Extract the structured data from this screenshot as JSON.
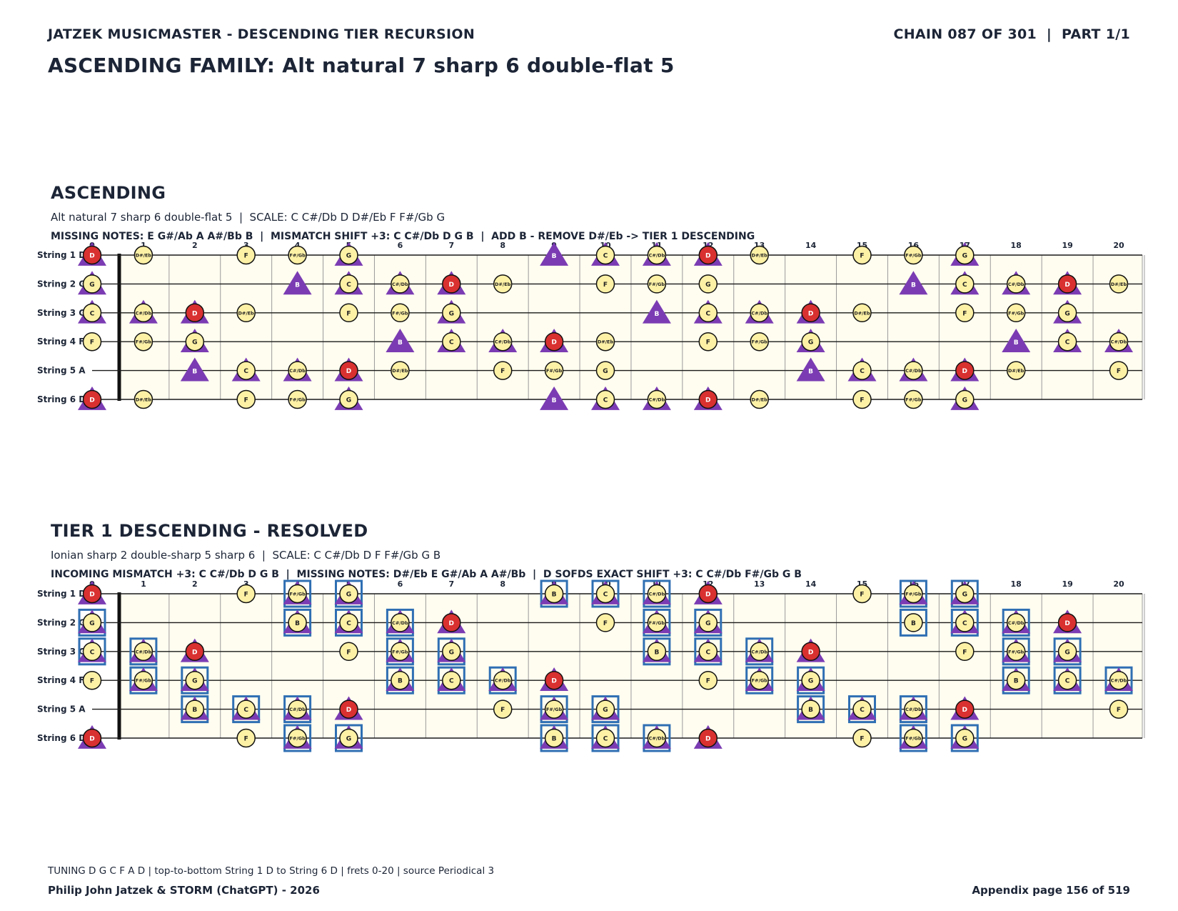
{
  "header": {
    "left": "JATZEK MUSICMASTER - DESCENDING TIER RECURSION",
    "right": "CHAIN 087 OF 301  |  PART 1/1"
  },
  "title": "ASCENDING FAMILY: Alt natural 7 sharp 6 double-flat 5",
  "colors": {
    "note_fill": "#fdf1a6",
    "root_fill": "#d93030",
    "triangle": "#7b3cb3",
    "box": "#2f6fb3",
    "board_bg": "#fffdf0",
    "text": "#1c2536"
  },
  "frets": [
    "0",
    "1",
    "2",
    "3",
    "4",
    "5",
    "6",
    "7",
    "8",
    "9",
    "10",
    "11",
    "12",
    "13",
    "14",
    "15",
    "16",
    "17",
    "18",
    "19",
    "20"
  ],
  "strings": [
    "String 1 D",
    "String 2 G",
    "String 3 C",
    "String 4 F",
    "String 5 A",
    "String 6 D"
  ],
  "sections": [
    {
      "title": "ASCENDING",
      "subtitle": "Alt natural 7 sharp 6 double-flat 5  |  SCALE: C C#/Db D D#/Eb F F#/Gb G",
      "info": "MISSING NOTES: E G#/Ab A A#/Bb B  |  MISMATCH SHIFT +3: C C#/Db D G B  |  ADD B - REMOVE D#/Eb -> TIER 1 DESCENDING",
      "boxed": false,
      "strings": [
        {
          "notes": [
            "D",
            "D#/Eb",
            "",
            "F",
            "F#/Gb",
            "G",
            "",
            "",
            "",
            "B",
            "C",
            "C#/Db",
            "D",
            "D#/Eb",
            "",
            "F",
            "F#/Gb",
            "G",
            "",
            "",
            ""
          ],
          "tri": [
            0,
            5,
            9,
            10,
            11,
            12,
            17
          ]
        },
        {
          "notes": [
            "G",
            "",
            "",
            "",
            "B",
            "C",
            "C#/Db",
            "D",
            "D#/Eb",
            "",
            "F",
            "F#/Gb",
            "G",
            "",
            "",
            "",
            "B",
            "C",
            "C#/Db",
            "D",
            "D#/Eb"
          ],
          "tri": [
            0,
            4,
            5,
            6,
            7,
            16,
            17,
            18,
            19
          ]
        },
        {
          "notes": [
            "C",
            "C#/Db",
            "D",
            "D#/Eb",
            "",
            "F",
            "F#/Gb",
            "G",
            "",
            "",
            "",
            "B",
            "C",
            "C#/Db",
            "D",
            "D#/Eb",
            "",
            "F",
            "F#/Gb",
            "G",
            ""
          ],
          "tri": [
            0,
            1,
            2,
            7,
            11,
            12,
            13,
            14,
            19
          ]
        },
        {
          "notes": [
            "F",
            "F#/Gb",
            "G",
            "",
            "",
            "",
            "B",
            "C",
            "C#/Db",
            "D",
            "D#/Eb",
            "",
            "F",
            "F#/Gb",
            "G",
            "",
            "",
            "",
            "B",
            "C",
            "C#/Db"
          ],
          "tri": [
            2,
            6,
            7,
            8,
            9,
            14,
            18,
            19,
            20
          ]
        },
        {
          "notes": [
            "",
            "",
            "B",
            "C",
            "C#/Db",
            "D",
            "D#/Eb",
            "",
            "F",
            "F#/Gb",
            "G",
            "",
            "",
            "",
            "B",
            "C",
            "C#/Db",
            "D",
            "D#/Eb",
            "",
            "F"
          ],
          "tri": [
            2,
            3,
            4,
            5,
            14,
            15,
            16,
            17
          ]
        },
        {
          "notes": [
            "D",
            "D#/Eb",
            "",
            "F",
            "F#/Gb",
            "G",
            "",
            "",
            "",
            "B",
            "C",
            "C#/Db",
            "D",
            "D#/Eb",
            "",
            "F",
            "F#/Gb",
            "G",
            "",
            "",
            ""
          ],
          "tri": [
            0,
            5,
            9,
            10,
            11,
            12,
            17
          ]
        }
      ]
    },
    {
      "title": "TIER 1 DESCENDING - RESOLVED",
      "subtitle": "Ionian sharp 2 double-sharp 5 sharp 6  |  SCALE: C C#/Db D F F#/Gb G B",
      "info": "INCOMING MISMATCH +3: C C#/Db D G B  |  MISSING NOTES: D#/Eb E G#/Ab A A#/Bb  |  D SOFDS EXACT SHIFT +3: C C#/Db F#/Gb G B",
      "boxed": true,
      "strings": [
        {
          "notes": [
            "D",
            "",
            "",
            "F",
            "F#/Gb",
            "G",
            "",
            "",
            "",
            "B",
            "C",
            "C#/Db",
            "D",
            "",
            "",
            "F",
            "F#/Gb",
            "G",
            "",
            "",
            ""
          ],
          "tri": [
            0,
            4,
            5,
            9,
            10,
            11,
            12,
            16,
            17
          ],
          "box": [
            4,
            5,
            9,
            10,
            11,
            16,
            17
          ]
        },
        {
          "notes": [
            "G",
            "",
            "",
            "",
            "B",
            "C",
            "C#/Db",
            "D",
            "",
            "",
            "F",
            "F#/Gb",
            "G",
            "",
            "",
            "",
            "B",
            "C",
            "C#/Db",
            "D",
            ""
          ],
          "tri": [
            0,
            4,
            5,
            6,
            7,
            11,
            12,
            17,
            18,
            19
          ],
          "box": [
            0,
            4,
            5,
            6,
            11,
            12,
            16,
            17,
            18
          ]
        },
        {
          "notes": [
            "C",
            "C#/Db",
            "D",
            "",
            "",
            "F",
            "F#/Gb",
            "G",
            "",
            "",
            "",
            "B",
            "C",
            "C#/Db",
            "D",
            "",
            "",
            "F",
            "F#/Gb",
            "G",
            ""
          ],
          "tri": [
            0,
            1,
            2,
            6,
            7,
            11,
            12,
            13,
            14,
            18,
            19
          ],
          "box": [
            0,
            1,
            6,
            7,
            11,
            12,
            13,
            18,
            19
          ]
        },
        {
          "notes": [
            "F",
            "F#/Gb",
            "G",
            "",
            "",
            "",
            "B",
            "C",
            "C#/Db",
            "D",
            "",
            "",
            "F",
            "F#/Gb",
            "G",
            "",
            "",
            "",
            "B",
            "C",
            "C#/Db"
          ],
          "tri": [
            1,
            2,
            6,
            7,
            8,
            9,
            13,
            14,
            18,
            19,
            20
          ],
          "box": [
            1,
            2,
            6,
            7,
            8,
            13,
            14,
            18,
            19,
            20
          ]
        },
        {
          "notes": [
            "",
            "",
            "B",
            "C",
            "C#/Db",
            "D",
            "",
            "",
            "F",
            "F#/Gb",
            "G",
            "",
            "",
            "",
            "B",
            "C",
            "C#/Db",
            "D",
            "",
            "",
            "F"
          ],
          "tri": [
            2,
            3,
            4,
            5,
            9,
            10,
            14,
            15,
            16,
            17
          ],
          "box": [
            2,
            3,
            4,
            9,
            10,
            14,
            15,
            16
          ]
        },
        {
          "notes": [
            "D",
            "",
            "",
            "F",
            "F#/Gb",
            "G",
            "",
            "",
            "",
            "B",
            "C",
            "C#/Db",
            "D",
            "",
            "",
            "F",
            "F#/Gb",
            "G",
            "",
            "",
            ""
          ],
          "tri": [
            0,
            4,
            5,
            9,
            10,
            11,
            12,
            16,
            17
          ],
          "box": [
            4,
            5,
            9,
            10,
            11,
            16,
            17
          ]
        }
      ]
    }
  ],
  "footer": {
    "tuning": "TUNING D G C F A D | top-to-bottom String 1 D to String 6 D | frets 0-20 | source Periodical 3",
    "credit": "Philip John Jatzek & STORM (ChatGPT) - 2026",
    "page": "Appendix page 156 of 519"
  }
}
